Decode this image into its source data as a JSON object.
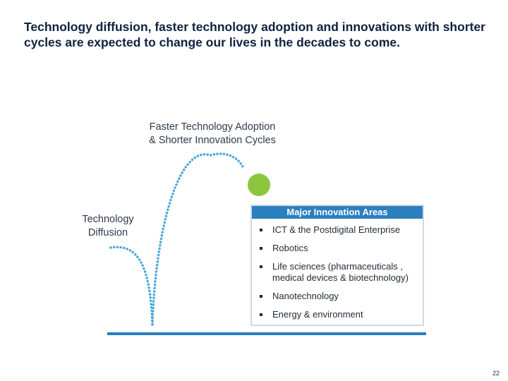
{
  "title": "Technology diffusion, faster technology adoption and innovations with shorter cycles are expected to change our lives in the decades to come.",
  "labels": {
    "faster_line1": "Faster Technology Adoption",
    "faster_line2": "& Shorter Innovation Cycles",
    "diffusion_line1": "Technology",
    "diffusion_line2": "Diffusion"
  },
  "innovation_box": {
    "header": "Major Innovation Areas",
    "items": [
      "ICT & the Postdigital Enterprise",
      "Robotics",
      "Life sciences (pharmaceuticals , medical devices & biotechnology)",
      "Nanotechnology",
      "Energy & environment"
    ]
  },
  "colors": {
    "title": "#0d2340",
    "dotted_arc": "#4aa8d8",
    "ball": "#8cc63f",
    "baseline": "#2a7fbf",
    "box_header": "#2a7fbf",
    "box_border": "#cfd9e6"
  },
  "page_number": "22"
}
